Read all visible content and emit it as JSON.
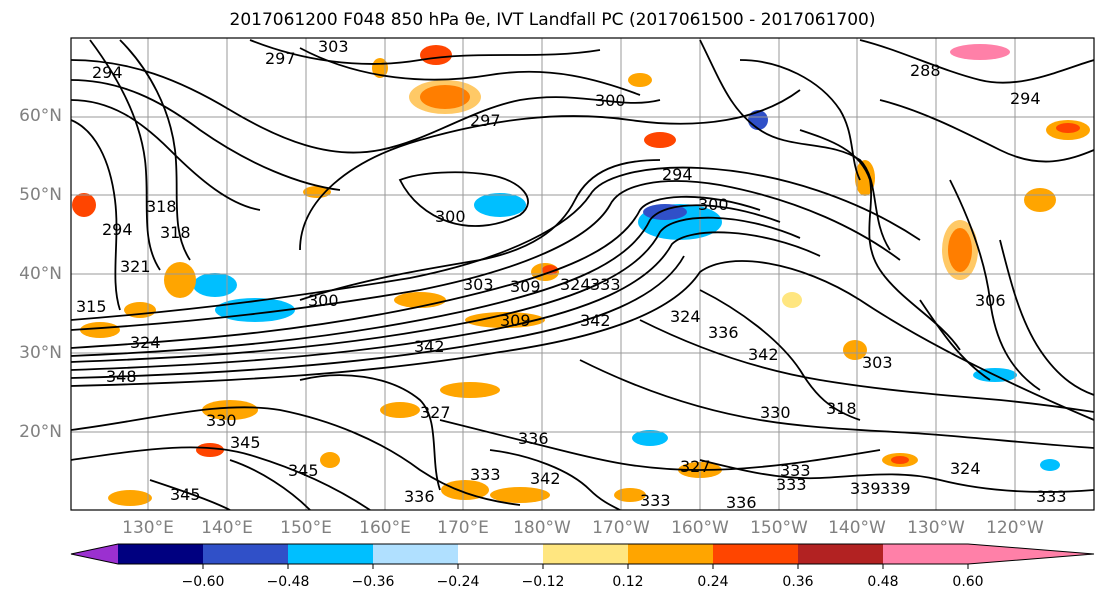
{
  "title": "2017061200 F048 850 hPa θe, IVT Landfall PC (2017061500 - 2017061700)",
  "map": {
    "projection": "PlateCarree",
    "lat_range": [
      10,
      70
    ],
    "lon_range": [
      "120°E",
      "110°W"
    ],
    "gridlines": true,
    "coastlines": true
  },
  "lat_labels": [
    "60°N",
    "50°N",
    "40°N",
    "30°N",
    "20°N"
  ],
  "lon_labels": [
    "130°E",
    "140°E",
    "150°E",
    "160°E",
    "170°E",
    "180°W",
    "170°W",
    "160°W",
    "150°W",
    "140°W",
    "130°W",
    "120°W"
  ],
  "contour_labels": [
    "297",
    "303",
    "294",
    "300",
    "288",
    "294",
    "300",
    "297",
    "294",
    "300",
    "294",
    "300",
    "315",
    "306",
    "318",
    "303",
    "309",
    "324",
    "303",
    "333",
    "342",
    "309",
    "324",
    "336",
    "342",
    "342",
    "327",
    "318",
    "345",
    "321",
    "330",
    "318",
    "339",
    "324",
    "345",
    "348",
    "345",
    "336",
    "342",
    "333",
    "327",
    "333",
    "333",
    "336",
    "336",
    "339",
    "330",
    "324",
    "333",
    "333"
  ],
  "colorbar": {
    "ticks": [
      "−0.60",
      "−0.48",
      "−0.36",
      "−0.24",
      "−0.12",
      "0.12",
      "0.24",
      "0.36",
      "0.48",
      "0.60"
    ],
    "colors": [
      "#9b30d0",
      "#000080",
      "#3050c8",
      "#00bfff",
      "#b0e0ff",
      "#ffffff",
      "#ffe680",
      "#ffa500",
      "#ff4500",
      "#b22222",
      "#ff80a8"
    ]
  }
}
